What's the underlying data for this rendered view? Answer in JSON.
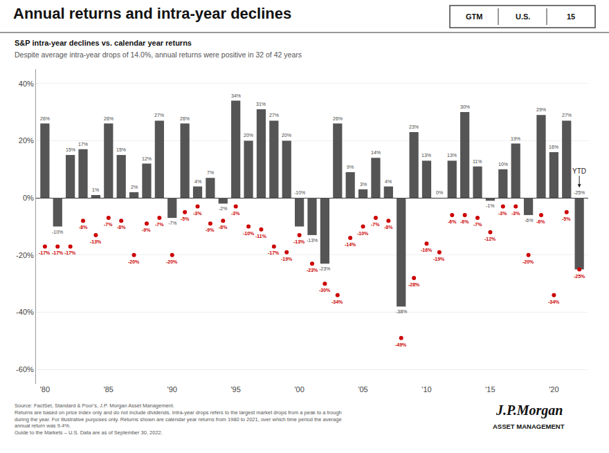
{
  "chart_data": {
    "type": "bar",
    "title": "Annual returns and intra-year declines",
    "subtitle": [
      "S&P intra-year declines vs. calendar year returns",
      "Despite average intra-year drops of 14.0%, annual returns were positive in 32 of 42 years"
    ],
    "annotations": [
      "YTD"
    ],
    "footnotes": [
      "Source: FactSet, Standard & Poor’s, J.P. Morgan Asset Management.",
      "Returns are based on price index only and do not include dividends. Intra-year drops refers to the largest market drops from a peak to a trough",
      "during the year. For illustrative purposes only. Returns shown are calendar year returns from 1980 to 2021, over which time period the average",
      "annual return was 9.4%.",
      "Guide to the Markets – U.S. Data are as of September 30, 2022."
    ],
    "badge": [
      "GTM",
      "U.S.",
      "15"
    ],
    "logo": [
      "J.P.Morgan",
      "ASSET MANAGEMENT"
    ],
    "categories": [
      "'80",
      null,
      null,
      null,
      null,
      "'85",
      null,
      null,
      null,
      null,
      "'90",
      null,
      null,
      null,
      null,
      "'95",
      null,
      null,
      null,
      null,
      "'00",
      null,
      null,
      null,
      null,
      "'05",
      null,
      null,
      null,
      null,
      "'10",
      null,
      null,
      null,
      null,
      "'15",
      null,
      null,
      null,
      null,
      "'20",
      null,
      null
    ],
    "series": [
      {
        "type": "bar",
        "color": "#555555",
        "values": [
          26,
          -10,
          15,
          17,
          1,
          26,
          15,
          2,
          12,
          27,
          -7,
          26,
          4,
          7,
          -2,
          34,
          20,
          31,
          27,
          20,
          -10,
          -13,
          -23,
          26,
          9,
          3,
          14,
          4,
          -38,
          23,
          13,
          0,
          13,
          30,
          11,
          -1,
          10,
          19,
          -6,
          29,
          16,
          27,
          -25
        ],
        "value_labels": [
          "26%",
          "-10%",
          "15%",
          "17%",
          "1%",
          "26%",
          "15%",
          "2%",
          "12%",
          "27%",
          "-7%",
          "26%",
          "4%",
          "7%",
          "-2%",
          "34%",
          "20%",
          "31%",
          "27%",
          "20%",
          "-10%",
          "-13%",
          "-23%",
          "26%",
          "9%",
          "3%",
          "14%",
          "4%",
          "-38%",
          "23%",
          "13%",
          "0%",
          "13%",
          "30%",
          "11%",
          "-1%",
          "10%",
          "19%",
          "-6%",
          "29%",
          "16%",
          "27%",
          "-25%"
        ]
      },
      {
        "type": "scatter",
        "marker": "circle",
        "color": "#cc0000",
        "values": [
          -17,
          -17,
          -17,
          -8,
          -13,
          -7,
          -8,
          -20,
          -9,
          -7,
          -20,
          -5,
          -3,
          -9,
          -8,
          -3,
          -10,
          -11,
          -17,
          -19,
          -13,
          -23,
          -30,
          -34,
          -14,
          -10,
          -7,
          -8,
          -49,
          -28,
          -16,
          -19,
          -6,
          -6,
          -7,
          -12,
          -3,
          -3,
          -20,
          -6,
          -34,
          -5,
          -25
        ],
        "value_labels": [
          "-17%",
          "-17%",
          "-17%",
          "-8%",
          "-13%",
          "-7%",
          "-8%",
          "-20%",
          "-9%",
          "-7%",
          "-20%",
          "-5%",
          "-3%",
          "-9%",
          "-8%",
          "-3%",
          "-10%",
          "-11%",
          "-17%",
          "-19%",
          "-13%",
          "-23%",
          "-30%",
          "-34%",
          "-14%",
          "-10%",
          "-7%",
          "-8%",
          "-49%",
          "-28%",
          "-16%",
          "-19%",
          "-6%",
          "-6%",
          "-7%",
          "-12%",
          "-3%",
          "-3%",
          "-20%",
          "-6%",
          "-34%",
          "-5%",
          "-25%"
        ]
      }
    ],
    "data_labels": true,
    "ylim": [
      -65,
      45
    ],
    "yticks": [
      {
        "value": -60,
        "label": "-60%"
      },
      {
        "value": -40,
        "label": "-40%"
      },
      {
        "value": -20,
        "label": "-20%"
      },
      {
        "value": 0,
        "label": "0%"
      },
      {
        "value": 20,
        "label": "20%"
      },
      {
        "value": 40,
        "label": "40%"
      }
    ],
    "grid": true
  }
}
